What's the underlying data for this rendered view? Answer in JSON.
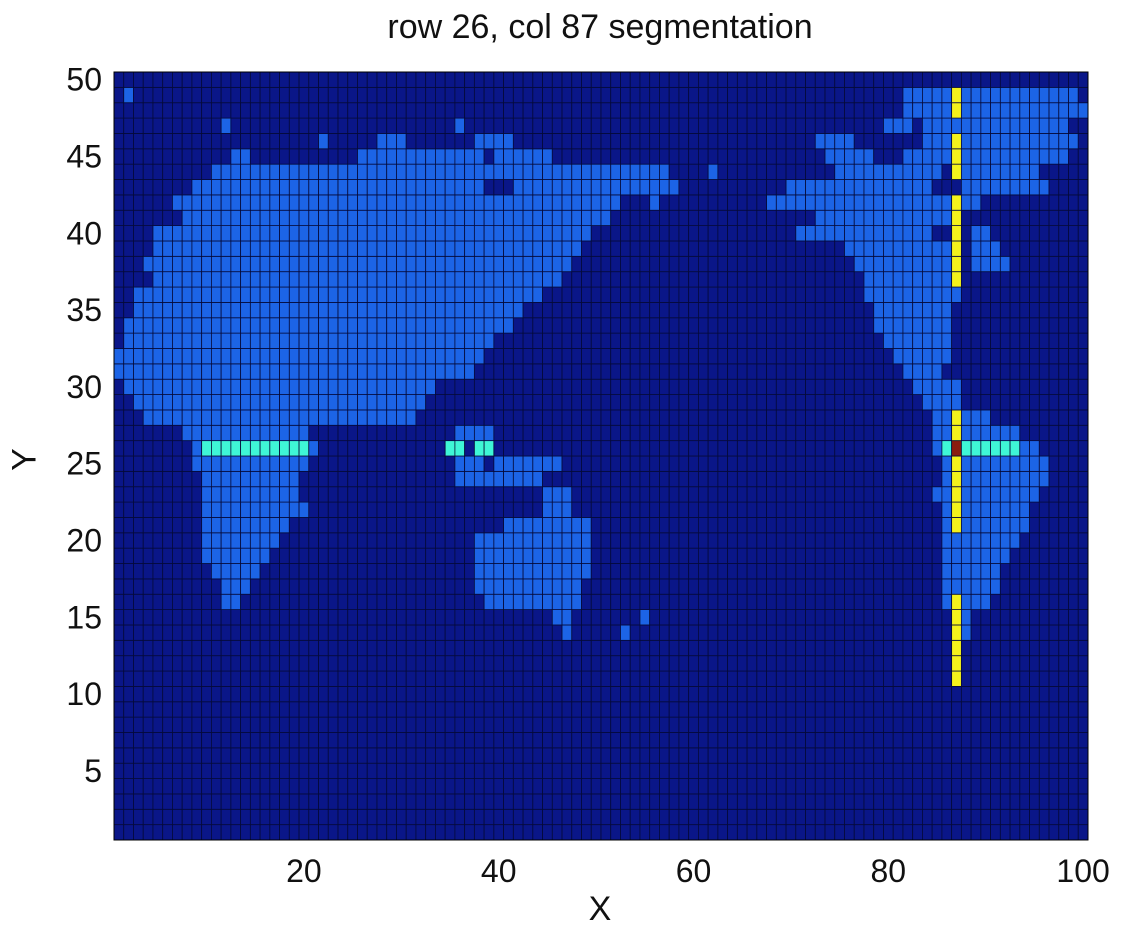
{
  "chart_data": {
    "type": "heatmap",
    "title": "row 26, col 87 segmentation",
    "xlabel": "X",
    "ylabel": "Y",
    "xlim": [
      1,
      100
    ],
    "ylim": [
      1,
      50
    ],
    "xticks": [
      20,
      40,
      60,
      80,
      100
    ],
    "yticks": [
      5,
      10,
      15,
      20,
      25,
      30,
      35,
      40,
      45,
      50
    ],
    "grid": "cell borders",
    "colors": {
      "ocean": "#0a1688",
      "land": "#1c64e6",
      "row_segment": "#3ff6d6",
      "col_segment": "#f4f21c",
      "selected": "#8a1c10",
      "cell_border": "#050a3a"
    },
    "selected_cell": {
      "row": 26,
      "col": 87
    },
    "row_segments": [
      [
        10,
        20
      ],
      [
        35,
        36
      ],
      [
        38,
        39
      ],
      [
        86,
        93
      ]
    ],
    "col_segments": [
      [
        11,
        16
      ],
      [
        21,
        28
      ],
      [
        37,
        42
      ],
      [
        44,
        46
      ],
      [
        48,
        49
      ]
    ],
    "land_runs": [
      [
        49,
        [
          [
            2,
            2
          ],
          [
            82,
            87
          ],
          [
            88,
            99
          ]
        ]
      ],
      [
        48,
        [
          [
            82,
            87
          ],
          [
            88,
            100
          ]
        ]
      ],
      [
        47,
        [
          [
            12,
            12
          ],
          [
            36,
            36
          ],
          [
            80,
            82
          ],
          [
            84,
            87
          ],
          [
            88,
            96
          ],
          [
            97,
            98
          ]
        ]
      ],
      [
        46,
        [
          [
            22,
            22
          ],
          [
            28,
            30
          ],
          [
            38,
            41
          ],
          [
            73,
            76
          ],
          [
            84,
            87
          ],
          [
            88,
            99
          ]
        ]
      ],
      [
        45,
        [
          [
            13,
            14
          ],
          [
            26,
            38
          ],
          [
            40,
            45
          ],
          [
            74,
            78
          ],
          [
            82,
            87
          ],
          [
            88,
            98
          ]
        ]
      ],
      [
        44,
        [
          [
            11,
            57
          ],
          [
            62,
            62
          ],
          [
            75,
            85
          ],
          [
            88,
            95
          ]
        ]
      ],
      [
        43,
        [
          [
            9,
            38
          ],
          [
            42,
            58
          ],
          [
            70,
            84
          ],
          [
            88,
            96
          ]
        ]
      ],
      [
        42,
        [
          [
            7,
            52
          ],
          [
            56,
            56
          ],
          [
            68,
            86
          ],
          [
            88,
            89
          ]
        ]
      ],
      [
        41,
        [
          [
            8,
            51
          ],
          [
            73,
            86
          ]
        ]
      ],
      [
        40,
        [
          [
            5,
            49
          ],
          [
            71,
            84
          ],
          [
            89,
            90
          ]
        ]
      ],
      [
        39,
        [
          [
            5,
            48
          ],
          [
            76,
            86
          ],
          [
            89,
            91
          ]
        ]
      ],
      [
        38,
        [
          [
            4,
            47
          ],
          [
            77,
            86
          ],
          [
            89,
            92
          ]
        ]
      ],
      [
        37,
        [
          [
            5,
            46
          ],
          [
            78,
            86
          ]
        ]
      ],
      [
        36,
        [
          [
            3,
            44
          ],
          [
            78,
            87
          ]
        ]
      ],
      [
        35,
        [
          [
            3,
            42
          ],
          [
            79,
            86
          ]
        ]
      ],
      [
        34,
        [
          [
            2,
            41
          ],
          [
            79,
            86
          ]
        ]
      ],
      [
        33,
        [
          [
            2,
            39
          ],
          [
            80,
            86
          ]
        ]
      ],
      [
        32,
        [
          [
            1,
            38
          ],
          [
            81,
            86
          ]
        ]
      ],
      [
        31,
        [
          [
            1,
            37
          ],
          [
            82,
            85
          ]
        ]
      ],
      [
        30,
        [
          [
            2,
            33
          ],
          [
            83,
            87
          ]
        ]
      ],
      [
        29,
        [
          [
            3,
            32
          ],
          [
            84,
            87
          ]
        ]
      ],
      [
        28,
        [
          [
            4,
            31
          ],
          [
            85,
            90
          ]
        ]
      ],
      [
        27,
        [
          [
            8,
            20
          ],
          [
            36,
            37
          ],
          [
            38,
            39
          ],
          [
            85,
            93
          ]
        ]
      ],
      [
        26,
        [
          [
            9,
            21
          ],
          [
            85,
            95
          ]
        ]
      ],
      [
        25,
        [
          [
            9,
            20
          ],
          [
            36,
            38
          ],
          [
            40,
            46
          ],
          [
            86,
            96
          ]
        ]
      ],
      [
        24,
        [
          [
            10,
            19
          ],
          [
            36,
            44
          ],
          [
            86,
            96
          ]
        ]
      ],
      [
        23,
        [
          [
            10,
            19
          ],
          [
            45,
            47
          ],
          [
            85,
            95
          ]
        ]
      ],
      [
        22,
        [
          [
            10,
            20
          ],
          [
            45,
            47
          ],
          [
            86,
            94
          ]
        ]
      ],
      [
        21,
        [
          [
            10,
            18
          ],
          [
            41,
            49
          ],
          [
            86,
            94
          ]
        ]
      ],
      [
        20,
        [
          [
            10,
            17
          ],
          [
            38,
            49
          ],
          [
            86,
            93
          ]
        ]
      ],
      [
        19,
        [
          [
            10,
            16
          ],
          [
            38,
            49
          ],
          [
            86,
            92
          ]
        ]
      ],
      [
        18,
        [
          [
            11,
            15
          ],
          [
            38,
            49
          ],
          [
            86,
            91
          ]
        ]
      ],
      [
        17,
        [
          [
            12,
            14
          ],
          [
            38,
            48
          ],
          [
            86,
            91
          ]
        ]
      ],
      [
        16,
        [
          [
            12,
            13
          ],
          [
            39,
            48
          ],
          [
            86,
            90
          ]
        ]
      ],
      [
        15,
        [
          [
            46,
            47
          ],
          [
            55,
            55
          ],
          [
            87,
            88
          ]
        ]
      ],
      [
        14,
        [
          [
            47,
            47
          ],
          [
            53,
            53
          ],
          [
            87,
            88
          ]
        ]
      ]
    ]
  }
}
